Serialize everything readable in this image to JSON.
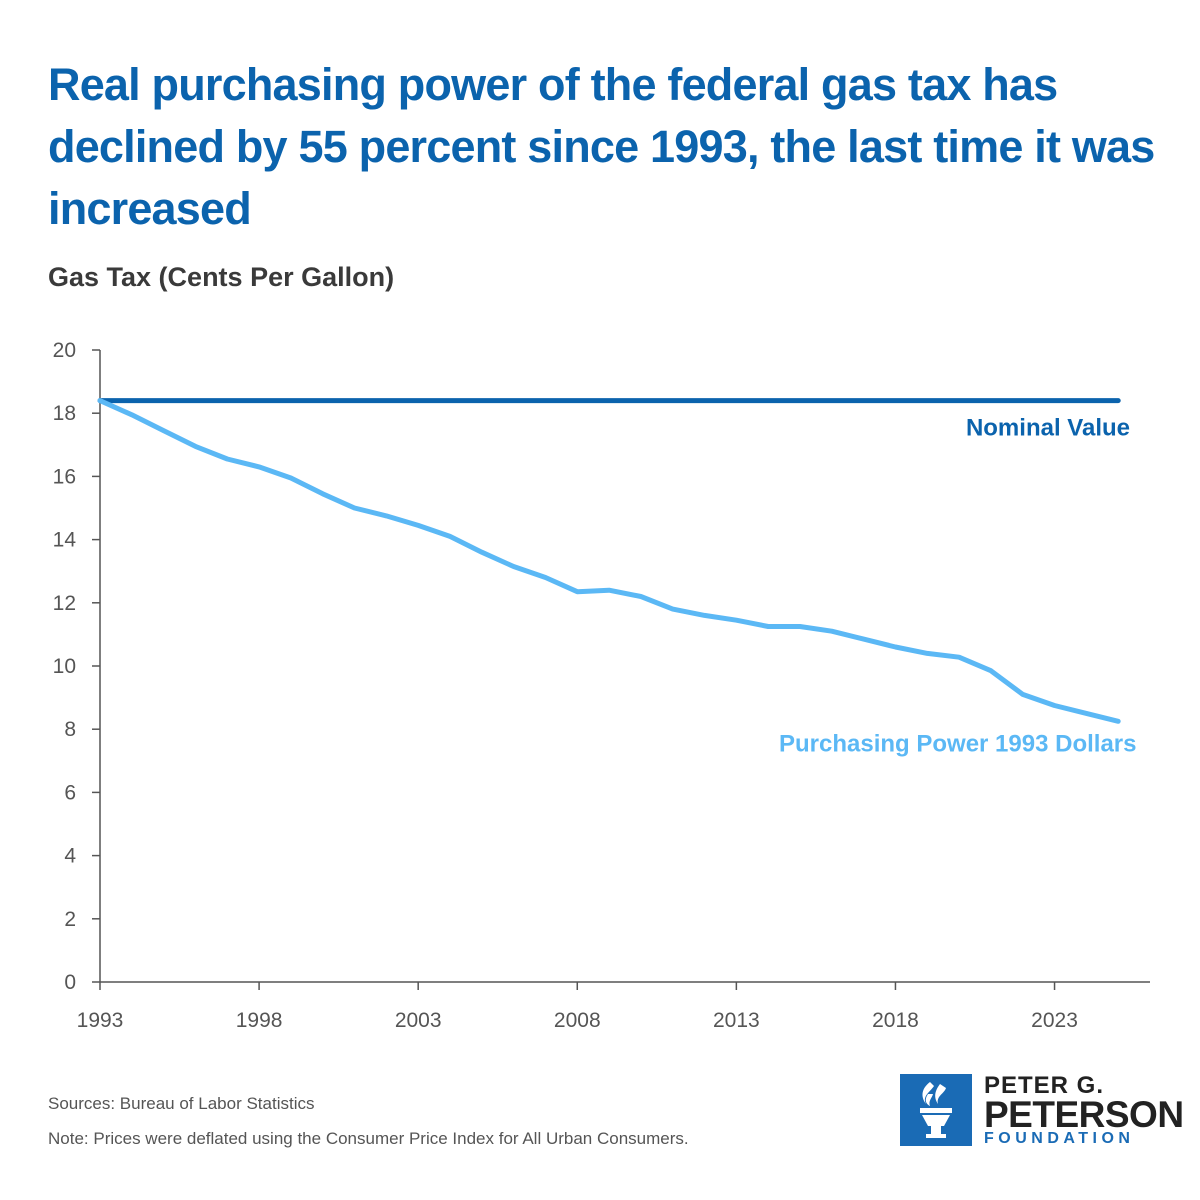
{
  "title": "Real purchasing power of the federal gas tax has declined by 55 percent since 1993, the last time it was increased",
  "chart_data": {
    "type": "line",
    "ylabel": "Gas Tax (Cents Per Gallon)",
    "xlabel": "",
    "ylim": [
      0,
      20
    ],
    "xlim": [
      1993,
      2026
    ],
    "yticks": [
      "0",
      "2",
      "4",
      "6",
      "8",
      "10",
      "12",
      "14",
      "16",
      "18",
      "20"
    ],
    "xticks": [
      "1993",
      "1998",
      "2003",
      "2008",
      "2013",
      "2018",
      "2023"
    ],
    "grid": false,
    "series": [
      {
        "name": "Nominal Value",
        "color": "#0b63ad",
        "x": [
          1993,
          2025
        ],
        "values": [
          18.4,
          18.4
        ]
      },
      {
        "name": "Purchasing Power 1993 Dollars",
        "color": "#5bb8f5",
        "x": [
          1993,
          1994,
          1995,
          1996,
          1997,
          1998,
          1999,
          2000,
          2001,
          2002,
          2003,
          2004,
          2005,
          2006,
          2007,
          2008,
          2009,
          2010,
          2011,
          2012,
          2013,
          2014,
          2015,
          2016,
          2017,
          2018,
          2019,
          2020,
          2021,
          2022,
          2023,
          2024,
          2025
        ],
        "values": [
          18.4,
          17.95,
          17.45,
          16.95,
          16.55,
          16.3,
          15.95,
          15.45,
          15.0,
          14.75,
          14.45,
          14.1,
          13.6,
          13.15,
          12.8,
          12.35,
          12.4,
          12.2,
          11.8,
          11.6,
          11.45,
          11.25,
          11.25,
          11.1,
          10.85,
          10.6,
          10.4,
          10.28,
          9.85,
          9.1,
          8.75,
          8.5,
          8.25
        ]
      }
    ]
  },
  "sources": "Sources: Bureau of Labor Statistics",
  "note": "Note: Prices were deflated using the Consumer Price Index for All Urban Consumers.",
  "logo": {
    "line1": "PETER G.",
    "line2": "PETERSON",
    "line3": "FOUNDATION",
    "color": "#1a6bb5"
  }
}
